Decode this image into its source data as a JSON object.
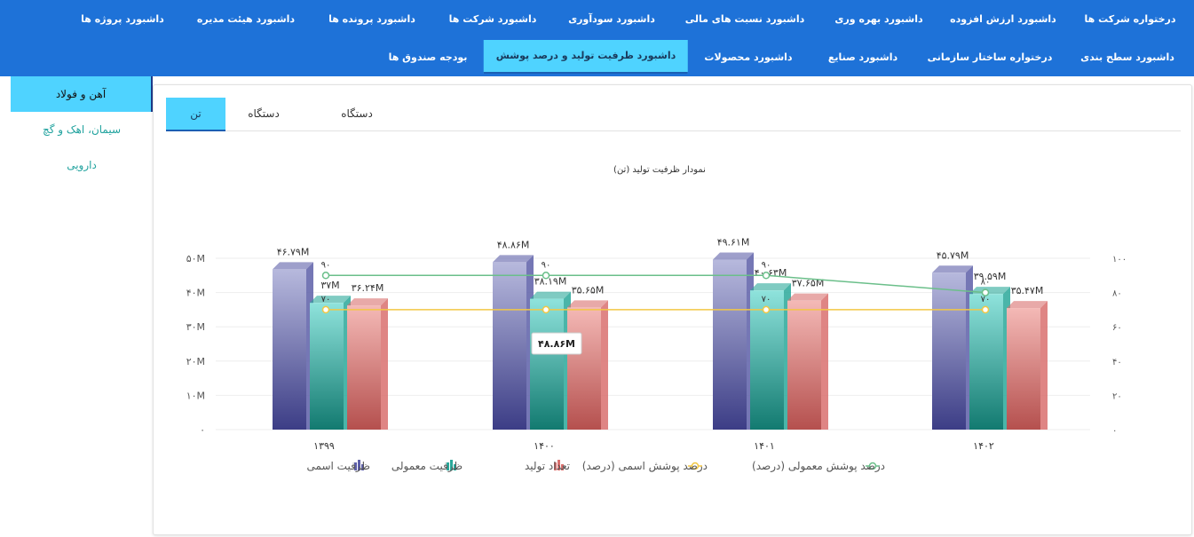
{
  "nav": {
    "row1": [
      "درختواره شرکت ها",
      "داشبورد ارزش افزوده",
      "داشبورد بهره وری",
      "داشبورد نسبت های مالی",
      "داشبورد سودآوری",
      "داشبورد شرکت ها",
      "داشبورد پرونده ها",
      "داشبورد هیئت مدیره",
      "داشبورد پروژه ها"
    ],
    "row2": [
      "داشبورد سطح بندی",
      "درختواره ساختار سازمانی",
      "داشبورد صنایع",
      "داشبورد محصولات",
      "داشبورد ظرفیت تولید و درصد پوشش",
      "بودجه صندوق ها"
    ],
    "active": "داشبورد ظرفیت تولید و درصد پوشش"
  },
  "sidebar": {
    "items": [
      "آهن و فولاد",
      "سیمان، اهک و گچ",
      "دارویی"
    ],
    "active": "آهن و فولاد"
  },
  "tabs": {
    "items": [
      "تن",
      "دستگاه",
      "دستگاه"
    ],
    "active": "تن"
  },
  "colors": {
    "nav_bg": "#1e72d8",
    "active_bg": "#4fd3ff",
    "accent_text": "#22a39f"
  },
  "chart_data": {
    "type": "bar",
    "title": "نمودار ظرفیت تولید (تن)",
    "categories": [
      "۱۳۹۹",
      "۱۴۰۰",
      "۱۴۰۱",
      "۱۴۰۲"
    ],
    "series": [
      {
        "name": "ظرفیت اسمی",
        "kind": "bar",
        "values": [
          46.79,
          48.86,
          49.61,
          45.79
        ],
        "labels": [
          "۴۶.۷۹M",
          "۴۸.۸۶M",
          "۴۹.۶۱M",
          "۴۵.۷۹M"
        ],
        "color": "#5d5fa8"
      },
      {
        "name": "ظرفیت معمولی",
        "kind": "bar",
        "values": [
          37,
          38.19,
          40.63,
          39.59
        ],
        "labels": [
          "۳۷M",
          "۳۸.۱۹M",
          "۴۰.۶۳M",
          "۳۹.۵۹M"
        ],
        "color": "#2aa89a"
      },
      {
        "name": "تعداد تولید",
        "kind": "bar",
        "values": [
          36.24,
          35.65,
          37.65,
          35.47
        ],
        "labels": [
          "۳۶.۲۴M",
          "۳۵.۶۵M",
          "۳۷.۶۵M",
          "۳۵.۴۷M"
        ],
        "color": "#d9706e"
      },
      {
        "name": "درصد پوشش اسمی (درصد)",
        "kind": "line",
        "axis": "right",
        "values": [
          70,
          70,
          70,
          70
        ],
        "labels": [
          "۷۰",
          "",
          "۷۰",
          "۷۰"
        ],
        "color": "#f2c744"
      },
      {
        "name": "درصد پوشش معمولی (درصد)",
        "kind": "line",
        "axis": "right",
        "values": [
          90,
          90,
          90,
          80
        ],
        "labels": [
          "۹۰",
          "۹۰",
          "۹۰",
          "۸۰"
        ],
        "color": "#6bbf8a"
      }
    ],
    "y_left": {
      "ticks": [
        "۰",
        "۱۰M",
        "۲۰M",
        "۳۰M",
        "۴۰M",
        "۵۰M"
      ],
      "range": [
        0,
        50
      ]
    },
    "y_right": {
      "ticks": [
        "۰",
        "۲۰",
        "۴۰",
        "۶۰",
        "۸۰",
        "۱۰۰"
      ],
      "range": [
        0,
        100
      ]
    },
    "tooltip": "۴۸.۸۶M",
    "legend_placement": "bottom",
    "grid": true
  }
}
